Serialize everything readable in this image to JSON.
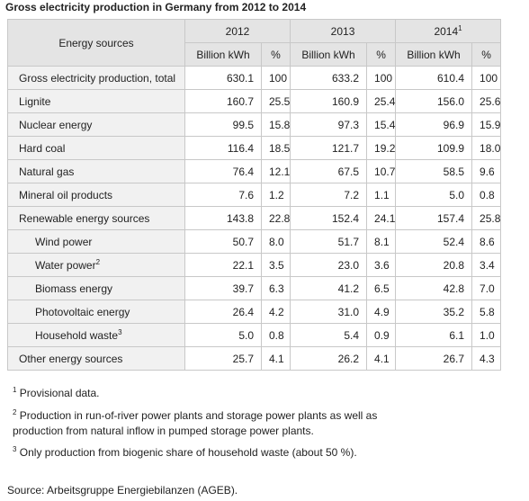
{
  "title": "Gross electricity production in Germany from 2012 to 2014",
  "table": {
    "header": {
      "label": "Energy sources",
      "years": [
        {
          "year": "2012"
        },
        {
          "year": "2013"
        },
        {
          "year": "2014",
          "note": "1"
        }
      ],
      "units": [
        "Billion kWh",
        "%"
      ]
    },
    "rows": [
      {
        "label": "Gross electricity production, total",
        "values": [
          "630.1",
          "100",
          "633.2",
          "100",
          "610.4",
          "100"
        ]
      },
      {
        "label": "Lignite",
        "values": [
          "160.7",
          "25.5",
          "160.9",
          "25.4",
          "156.0",
          "25.6"
        ]
      },
      {
        "label": "Nuclear energy",
        "values": [
          "99.5",
          "15.8",
          "97.3",
          "15.4",
          "96.9",
          "15.9"
        ]
      },
      {
        "label": "Hard coal",
        "values": [
          "116.4",
          "18.5",
          "121.7",
          "19.2",
          "109.9",
          "18.0"
        ]
      },
      {
        "label": "Natural gas",
        "values": [
          "76.4",
          "12.1",
          "67.5",
          "10.7",
          "58.5",
          "9.6"
        ]
      },
      {
        "label": "Mineral oil products",
        "values": [
          "7.6",
          "1.2",
          "7.2",
          "1.1",
          "5.0",
          "0.8"
        ]
      },
      {
        "label": "Renewable energy sources",
        "values": [
          "143.8",
          "22.8",
          "152.4",
          "24.1",
          "157.4",
          "25.8"
        ],
        "components": [
          {
            "label": "Wind power",
            "values": [
              "50.7",
              "8.0",
              "51.7",
              "8.1",
              "52.4",
              "8.6"
            ]
          },
          {
            "label": "Water power",
            "note": "2",
            "values": [
              "22.1",
              "3.5",
              "23.0",
              "3.6",
              "20.8",
              "3.4"
            ]
          },
          {
            "label": "Biomass energy",
            "values": [
              "39.7",
              "6.3",
              "41.2",
              "6.5",
              "42.8",
              "7.0"
            ]
          },
          {
            "label": "Photovoltaic energy",
            "values": [
              "26.4",
              "4.2",
              "31.0",
              "4.9",
              "35.2",
              "5.8"
            ]
          },
          {
            "label": "Household waste",
            "note": "3",
            "values": [
              "5.0",
              "0.8",
              "5.4",
              "0.9",
              "6.1",
              "1.0"
            ]
          }
        ]
      },
      {
        "label": "Other energy sources",
        "values": [
          "25.7",
          "4.1",
          "26.2",
          "4.1",
          "26.7",
          "4.3"
        ]
      }
    ]
  },
  "footnotes": [
    {
      "mark": "1",
      "text": "Provisional data."
    },
    {
      "mark": "2",
      "text": "Production in run-of-river power plants and storage power plants as well as production from natural inflow in pumped storage power plants."
    },
    {
      "mark": "3",
      "text": "Only production from biogenic share of household waste (about 50 %)."
    }
  ],
  "source": "Source: Arbeitsgruppe Energiebilanzen (AGEB)."
}
